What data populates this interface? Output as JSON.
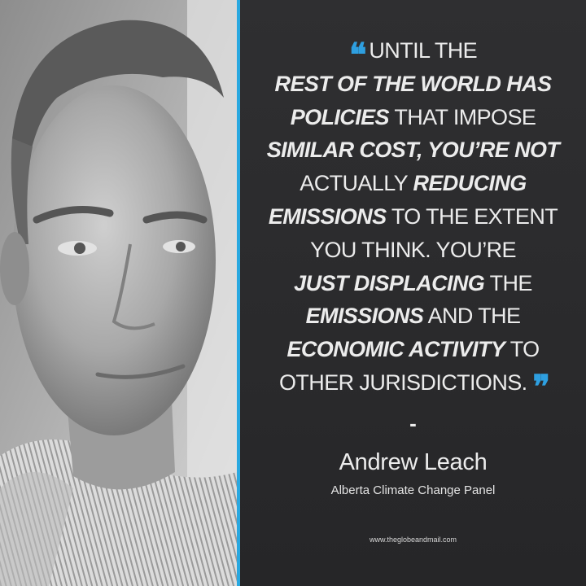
{
  "quote": {
    "open_mark": "❝",
    "close_mark": "❞",
    "lines": [
      [
        {
          "t": "UNTIL THE",
          "em": false
        }
      ],
      [
        {
          "t": "REST OF THE WORLD HAS",
          "em": true
        }
      ],
      [
        {
          "t": "POLICIES",
          "em": true
        },
        {
          "t": " THAT IMPOSE",
          "em": false
        }
      ],
      [
        {
          "t": "SIMILAR COST, YOU’RE NOT",
          "em": true
        }
      ],
      [
        {
          "t": "ACTUALLY ",
          "em": false
        },
        {
          "t": "REDUCING",
          "em": true
        }
      ],
      [
        {
          "t": "EMISSIONS",
          "em": true
        },
        {
          "t": " TO THE EXTENT",
          "em": false
        }
      ],
      [
        {
          "t": "YOU THINK. YOU’RE",
          "em": false
        }
      ],
      [
        {
          "t": "JUST DISPLACING",
          "em": true
        },
        {
          "t": " THE",
          "em": false
        }
      ],
      [
        {
          "t": "EMISSIONS",
          "em": true
        },
        {
          "t": " AND THE",
          "em": false
        }
      ],
      [
        {
          "t": "ECONOMIC ACTIVITY",
          "em": true
        },
        {
          "t": " TO",
          "em": false
        }
      ],
      [
        {
          "t": "OTHER JURISDICTIONS.",
          "em": false
        }
      ]
    ]
  },
  "attribution": {
    "dash": "-",
    "name": "Andrew Leach",
    "title": "Alberta Climate Change Panel"
  },
  "source": "www.theglobeandmail.com",
  "colors": {
    "accent": "#29a8e0",
    "quote_mark": "#2e9fe0",
    "background": "#2b2b2d",
    "text": "#ececec"
  }
}
